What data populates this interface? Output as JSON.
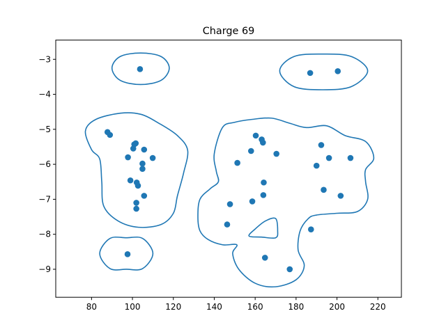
{
  "chart_data": {
    "type": "scatter",
    "title": "Charge 69",
    "xlabel": "",
    "ylabel": "",
    "xlim": [
      62.5,
      231.5
    ],
    "ylim": [
      -9.8,
      -2.45
    ],
    "x_ticks": [
      80,
      100,
      120,
      140,
      160,
      180,
      200,
      220
    ],
    "y_ticks": [
      -3,
      -4,
      -5,
      -6,
      -7,
      -8,
      -9
    ],
    "x_tick_labels": [
      "80",
      "100",
      "120",
      "140",
      "160",
      "180",
      "200",
      "220"
    ],
    "y_tick_labels": [
      "−3",
      "−4",
      "−5",
      "−6",
      "−7",
      "−8",
      "−9"
    ],
    "grid": false,
    "colors": {
      "points": "#1f77b4",
      "contours": "#1f77b4"
    },
    "points": [
      [
        103.7,
        -3.28
      ],
      [
        186.9,
        -3.39
      ],
      [
        200.4,
        -3.34
      ],
      [
        87.8,
        -5.08
      ],
      [
        89.0,
        -5.16
      ],
      [
        100.9,
        -5.43
      ],
      [
        100.4,
        -5.55
      ],
      [
        101.6,
        -5.4
      ],
      [
        105.7,
        -5.58
      ],
      [
        97.8,
        -5.8
      ],
      [
        109.9,
        -5.82
      ],
      [
        104.9,
        -5.98
      ],
      [
        104.9,
        -6.13
      ],
      [
        99.0,
        -6.46
      ],
      [
        102.1,
        -6.52
      ],
      [
        102.7,
        -6.61
      ],
      [
        105.7,
        -6.9
      ],
      [
        101.9,
        -7.1
      ],
      [
        101.9,
        -7.27
      ],
      [
        97.6,
        -8.57
      ],
      [
        160.3,
        -5.18
      ],
      [
        163.2,
        -5.29
      ],
      [
        163.8,
        -5.38
      ],
      [
        158.0,
        -5.62
      ],
      [
        170.4,
        -5.7
      ],
      [
        151.3,
        -5.96
      ],
      [
        192.3,
        -5.45
      ],
      [
        196.1,
        -5.82
      ],
      [
        206.6,
        -5.82
      ],
      [
        190.0,
        -6.04
      ],
      [
        164.2,
        -6.52
      ],
      [
        193.5,
        -6.73
      ],
      [
        164.0,
        -6.88
      ],
      [
        201.8,
        -6.9
      ],
      [
        158.6,
        -7.06
      ],
      [
        147.7,
        -7.14
      ],
      [
        146.3,
        -7.72
      ],
      [
        187.3,
        -7.86
      ],
      [
        164.8,
        -8.67
      ],
      [
        176.9,
        -9.0
      ]
    ],
    "contours": [
      [
        [
          104,
          -2.82
        ],
        [
          114,
          -2.92
        ],
        [
          118,
          -3.25
        ],
        [
          114,
          -3.6
        ],
        [
          104,
          -3.72
        ],
        [
          94,
          -3.6
        ],
        [
          90,
          -3.25
        ],
        [
          94,
          -2.92
        ]
      ],
      [
        [
          193,
          -2.85
        ],
        [
          207,
          -2.92
        ],
        [
          215,
          -3.33
        ],
        [
          207,
          -3.78
        ],
        [
          193,
          -3.87
        ],
        [
          179,
          -3.78
        ],
        [
          172,
          -3.33
        ],
        [
          179,
          -2.92
        ]
      ],
      [
        [
          94,
          -4.54
        ],
        [
          104,
          -4.57
        ],
        [
          113,
          -4.83
        ],
        [
          122,
          -5.18
        ],
        [
          127,
          -5.6
        ],
        [
          125,
          -6.25
        ],
        [
          122,
          -6.9
        ],
        [
          120,
          -7.4
        ],
        [
          114,
          -7.72
        ],
        [
          103,
          -7.8
        ],
        [
          93,
          -7.62
        ],
        [
          86,
          -7.2
        ],
        [
          85,
          -6.5
        ],
        [
          84,
          -5.85
        ],
        [
          80,
          -5.58
        ],
        [
          77,
          -5.05
        ],
        [
          82,
          -4.72
        ]
      ],
      [
        [
          97,
          -8.1
        ],
        [
          105,
          -8.12
        ],
        [
          110,
          -8.55
        ],
        [
          105,
          -8.98
        ],
        [
          97,
          -9.0
        ],
        [
          89,
          -8.98
        ],
        [
          84,
          -8.55
        ],
        [
          89,
          -8.12
        ]
      ],
      [
        [
          144,
          -4.95
        ],
        [
          150,
          -4.8
        ],
        [
          158,
          -4.72
        ],
        [
          168,
          -4.68
        ],
        [
          177,
          -4.83
        ],
        [
          185,
          -4.95
        ],
        [
          195,
          -4.9
        ],
        [
          204,
          -5.18
        ],
        [
          214,
          -5.35
        ],
        [
          218,
          -5.82
        ],
        [
          214,
          -6.15
        ],
        [
          214,
          -6.5
        ],
        [
          215,
          -7.0
        ],
        [
          210,
          -7.35
        ],
        [
          200,
          -7.4
        ],
        [
          190,
          -7.45
        ],
        [
          186,
          -7.55
        ],
        [
          182,
          -7.9
        ],
        [
          181,
          -8.45
        ],
        [
          184,
          -8.9
        ],
        [
          180,
          -9.3
        ],
        [
          170,
          -9.5
        ],
        [
          160,
          -9.4
        ],
        [
          152,
          -9.0
        ],
        [
          149,
          -8.55
        ],
        [
          151,
          -8.3
        ],
        [
          144,
          -8.3
        ],
        [
          137,
          -8.15
        ],
        [
          133,
          -7.9
        ],
        [
          132,
          -7.5
        ],
        [
          133,
          -7.0
        ],
        [
          138,
          -6.7
        ],
        [
          142,
          -6.5
        ],
        [
          141,
          -6.2
        ],
        [
          140,
          -5.7
        ]
      ],
      [
        [
          170,
          -7.55
        ],
        [
          171,
          -7.9
        ],
        [
          170,
          -8.1
        ],
        [
          163,
          -8.08
        ],
        [
          157,
          -8.05
        ],
        [
          160,
          -7.85
        ],
        [
          165,
          -7.62
        ]
      ]
    ]
  }
}
